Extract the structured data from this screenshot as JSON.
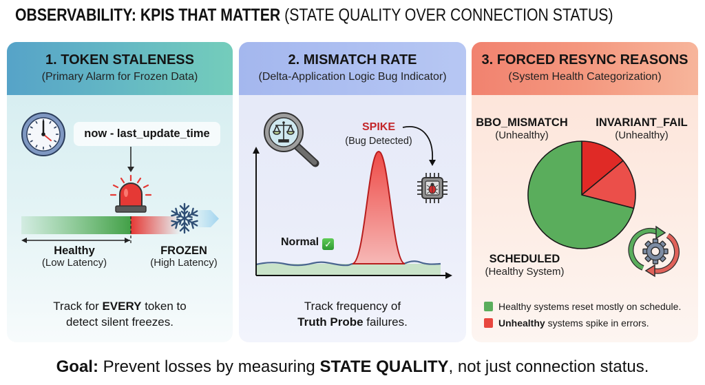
{
  "title": {
    "bold": "OBSERVABILITY: KPIS THAT MATTER",
    "regular": "(STATE QUALITY OVER CONNECTION STATUS)"
  },
  "cards": [
    {
      "title": "1. TOKEN STALENESS",
      "subtitle": "(Primary Alarm for Frozen Data)",
      "formula": "now - last_update_time",
      "healthy_label": "Healthy",
      "healthy_sub": "(Low Latency)",
      "frozen_label": "FROZEN",
      "frozen_sub": "(High Latency)",
      "footer": {
        "pre": "Track for ",
        "bold": "EVERY",
        "post": " token to",
        "line2": "detect silent freezes."
      },
      "icons": [
        "clock-icon",
        "alarm-siren-icon",
        "snowflake-icon"
      ]
    },
    {
      "title": "2. MISMATCH RATE",
      "subtitle": "(Delta-Application Logic Bug Indicator)",
      "spike_label": "SPIKE",
      "spike_sub": "(Bug Detected)",
      "normal_label": "Normal",
      "normal_badge": "✓",
      "footer": {
        "line1": "Track frequency of",
        "bold": "Truth Probe",
        "post": " failures."
      },
      "icons": [
        "magnifier-scales-icon",
        "bug-chip-icon",
        "check-icon"
      ]
    },
    {
      "title": "3. FORCED RESYNC REASONS",
      "subtitle": "(System Health Categorization)",
      "labels": [
        {
          "name": "BBO_MISMATCH",
          "sub": "(Unhealthy)"
        },
        {
          "name": "INVARIANT_FAIL",
          "sub": "(Unhealthy)"
        },
        {
          "name": "SCHEDULED",
          "sub": "(Healthy System)"
        }
      ],
      "legend": [
        {
          "pre": "",
          "bold": "",
          "text": "Healthy systems reset mostly on schedule.",
          "color": "#5aad5c"
        },
        {
          "pre": "",
          "bold": "Unhealthy",
          "text": " systems spike in errors.",
          "color": "#e8473f"
        }
      ],
      "icons": [
        "gear-sync-icon"
      ]
    }
  ],
  "footer": {
    "goal_label": "Goal:",
    "text_1": " Prevent losses by measuring ",
    "emphasis": "STATE QUALITY",
    "text_2": ", not just connection status."
  },
  "colors": {
    "healthy_green": "#5aad5c",
    "unhealthy_red": "#e8473f",
    "dark_red": "#e02a26",
    "spike_red": "#c3262a"
  },
  "chart_data": [
    {
      "type": "pie",
      "title": "Forced Resync Reasons",
      "categories": [
        "BBO_MISMATCH",
        "INVARIANT_FAIL",
        "SCHEDULED"
      ],
      "values": [
        14,
        15,
        71
      ],
      "colors": [
        "#e02a26",
        "#eb4f4a",
        "#5aad5c"
      ],
      "legend": [
        "Healthy systems reset mostly on schedule.",
        "Unhealthy systems spike in errors."
      ]
    },
    {
      "type": "line",
      "title": "Mismatch Rate",
      "annotations": [
        "Normal",
        "SPIKE (Bug Detected)"
      ],
      "xlabel": "",
      "ylabel": "",
      "description": "flat low baseline with a single tall spike"
    }
  ]
}
